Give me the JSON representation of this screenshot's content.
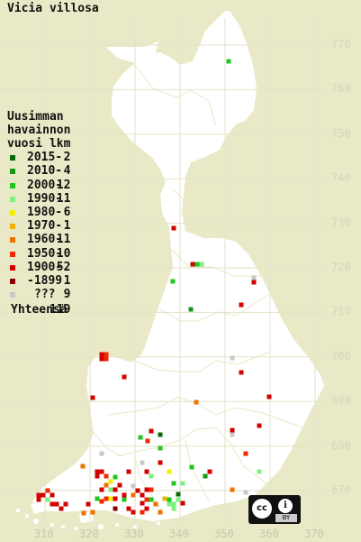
{
  "title": "Vicia villosa",
  "legend": {
    "heading": [
      "Uusimman",
      "havainnon"
    ],
    "col_year": "vuosi",
    "col_count": "lkm",
    "rows": [
      {
        "label": "2015-",
        "count": "2",
        "color": "#0a6a0a"
      },
      {
        "label": "2010-",
        "count": "4",
        "color": "#149814"
      },
      {
        "label": "2000-",
        "count": "12",
        "color": "#1ec81e"
      },
      {
        "label": "1990-",
        "count": "11",
        "color": "#7ef07e"
      },
      {
        "label": "1980-",
        "count": "6",
        "color": "#f2f200"
      },
      {
        "label": "1970-",
        "count": "1",
        "color": "#f2b400"
      },
      {
        "label": "1960-",
        "count": "11",
        "color": "#f07000"
      },
      {
        "label": "1950-",
        "count": "10",
        "color": "#f02a00"
      },
      {
        "label": "1900-",
        "count": "52",
        "color": "#d20000"
      },
      {
        "label": "-1899",
        "count": "1",
        "color": "#8a0000"
      },
      {
        "label": "???",
        "count": "9",
        "color": "#c8c8c8"
      }
    ],
    "total_label": "Yhteensä",
    "total_count": "119"
  },
  "y_ticks": [
    "770",
    "760",
    "750",
    "740",
    "730",
    "720",
    "710",
    "700",
    "690",
    "680",
    "670"
  ],
  "x_ticks": [
    "310",
    "320",
    "330",
    "340",
    "350",
    "360",
    "370"
  ],
  "license": {
    "cc": "cc",
    "by": "BY",
    "person_icon": "i"
  },
  "colors": {
    "background": "#e9e9c7",
    "land": "#ffffff",
    "grid": "#e4e4cc",
    "border": "#e9e9c7"
  }
}
